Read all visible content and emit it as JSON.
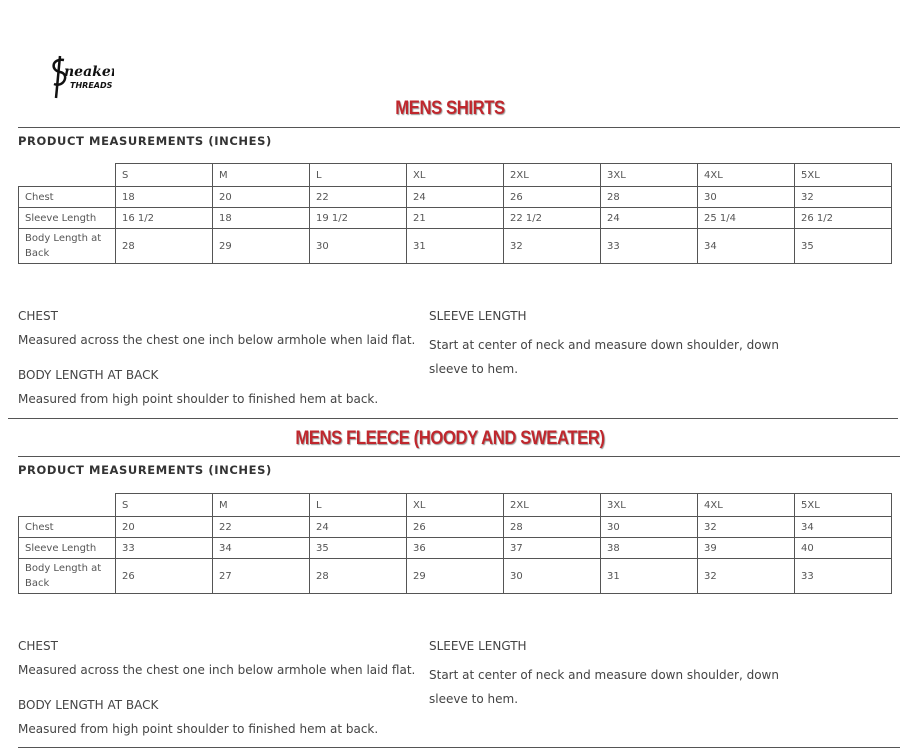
{
  "brand": {
    "logo_text": "Sneaker Threads"
  },
  "sizes": [
    "S",
    "M",
    "L",
    "XL",
    "2XL",
    "3XL",
    "4XL",
    "5XL"
  ],
  "subtitle": "PRODUCT MEASUREMENTS (INCHES)",
  "sections": [
    {
      "title": "MENS SHIRTS",
      "rows": [
        {
          "label": "Chest",
          "values": [
            "18",
            "20",
            "22",
            "24",
            "26",
            "28",
            "30",
            "32"
          ]
        },
        {
          "label": "Sleeve Length",
          "values": [
            "16 1/2",
            "18",
            "19 1/2",
            "21",
            "22 1/2",
            "24",
            "25 1/4",
            "26 1/2"
          ]
        },
        {
          "label": "Body Length at Back",
          "values": [
            "28",
            "29",
            "30",
            "31",
            "32",
            "33",
            "34",
            "35"
          ]
        }
      ]
    },
    {
      "title": "MENS FLEECE (HOODY AND SWEATER)",
      "rows": [
        {
          "label": "Chest",
          "values": [
            "20",
            "22",
            "24",
            "26",
            "28",
            "30",
            "32",
            "34"
          ]
        },
        {
          "label": "Sleeve Length",
          "values": [
            "33",
            "34",
            "35",
            "36",
            "37",
            "38",
            "39",
            "40"
          ]
        },
        {
          "label": "Body Length at Back",
          "values": [
            "26",
            "27",
            "28",
            "29",
            "30",
            "31",
            "32",
            "33"
          ]
        }
      ]
    }
  ],
  "notes": {
    "chest_heading": "CHEST",
    "chest_text": "Measured across the chest one inch below armhole when laid flat.",
    "body_heading": "BODY LENGTH AT BACK",
    "body_text": "Measured from high point shoulder to finished hem at back.",
    "sleeve_heading": "SLEEVE LENGTH",
    "sleeve_text": "Start at center of neck and measure down shoulder, down sleeve to hem."
  },
  "colors": {
    "title_red": "#c0272d"
  }
}
